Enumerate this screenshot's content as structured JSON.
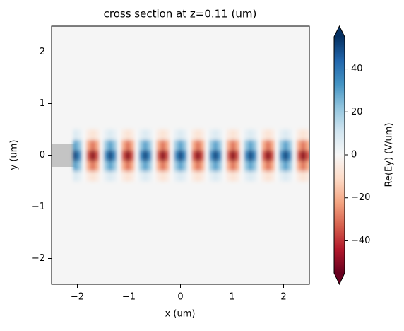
{
  "chart_data": {
    "type": "heatmap",
    "title": "cross section at z=0.11 (um)",
    "x_label": "x (um)",
    "y_label": "y (um)",
    "xlim": [
      -2.5,
      2.5
    ],
    "ylim": [
      -2.5,
      2.5
    ],
    "xticks": [
      {
        "value": -2,
        "label": "−2"
      },
      {
        "value": -1,
        "label": "−1"
      },
      0,
      1,
      2
    ],
    "yticks": [
      {
        "value": -2,
        "label": "−2"
      },
      {
        "value": -1,
        "label": "−1"
      },
      0,
      1,
      2
    ],
    "x": [
      -2.04,
      -1.955,
      -1.87,
      -1.785,
      -1.7,
      -1.615,
      -1.53,
      -1.445,
      -1.36,
      -1.275,
      -1.19,
      -1.105,
      -1.02,
      -0.935,
      -0.85,
      -0.765,
      -0.68,
      -0.595,
      -0.51,
      -0.425,
      -0.34,
      -0.255,
      -0.17,
      -0.085,
      0,
      0.085,
      0.17,
      0.255,
      0.34,
      0.425,
      0.51,
      0.595,
      0.68,
      0.765,
      0.85,
      0.935,
      1.02,
      1.105,
      1.19,
      1.275,
      1.36,
      1.445,
      1.53,
      1.615,
      1.7,
      1.785,
      1.87,
      1.955,
      2.04,
      2.125,
      2.21,
      2.295,
      2.38,
      2.465
    ],
    "y": [
      -0.4,
      -0.2,
      0,
      0.2,
      0.4
    ],
    "z": [
      [
        8,
        5,
        0,
        -5,
        -8,
        -5,
        0,
        5,
        8,
        5,
        0,
        -5,
        -8,
        -5,
        0,
        5,
        8,
        5,
        0,
        -5,
        -8,
        -5,
        0,
        5,
        8,
        5,
        0,
        -5,
        -8,
        -5,
        0,
        5,
        8,
        5,
        0,
        -5,
        -8,
        -5,
        0,
        5,
        8,
        5,
        0,
        -5,
        -8,
        -5,
        0,
        5,
        8,
        5,
        0,
        -5,
        -8,
        -5
      ],
      [
        30,
        21,
        0,
        -21,
        -30,
        -21,
        0,
        21,
        30,
        21,
        0,
        -21,
        -30,
        -21,
        0,
        21,
        30,
        21,
        0,
        -21,
        -30,
        -21,
        0,
        21,
        30,
        21,
        0,
        -21,
        -30,
        -21,
        0,
        21,
        30,
        21,
        0,
        -21,
        -30,
        -21,
        0,
        21,
        30,
        21,
        0,
        -21,
        -30,
        -21,
        0,
        21,
        30,
        21,
        0,
        -21,
        -30,
        -21
      ],
      [
        50,
        35,
        0,
        -35,
        -50,
        -35,
        0,
        35,
        50,
        35,
        0,
        -35,
        -50,
        -35,
        0,
        35,
        50,
        35,
        0,
        -35,
        -50,
        -35,
        0,
        35,
        50,
        35,
        0,
        -35,
        -50,
        -35,
        0,
        35,
        50,
        35,
        0,
        -35,
        -50,
        -35,
        0,
        35,
        50,
        35,
        0,
        -35,
        -50,
        -35,
        0,
        35,
        50,
        35,
        0,
        -35,
        -50,
        -35
      ],
      [
        30,
        21,
        0,
        -21,
        -30,
        -21,
        0,
        21,
        30,
        21,
        0,
        -21,
        -30,
        -21,
        0,
        21,
        30,
        21,
        0,
        -21,
        -30,
        -21,
        0,
        21,
        30,
        21,
        0,
        -21,
        -30,
        -21,
        0,
        21,
        30,
        21,
        0,
        -21,
        -30,
        -21,
        0,
        21,
        30,
        21,
        0,
        -21,
        -30,
        -21,
        0,
        21,
        30,
        21,
        0,
        -21,
        -30,
        -21
      ],
      [
        8,
        5,
        0,
        -5,
        -8,
        -5,
        0,
        5,
        8,
        5,
        0,
        -5,
        -8,
        -5,
        0,
        5,
        8,
        5,
        0,
        -5,
        -8,
        -5,
        0,
        5,
        8,
        5,
        0,
        -5,
        -8,
        -5,
        0,
        5,
        8,
        5,
        0,
        -5,
        -8,
        -5,
        0,
        5,
        8,
        5,
        0,
        -5,
        -8,
        -5,
        0,
        5,
        8,
        5,
        0,
        -5,
        -8,
        -5
      ]
    ],
    "colorbar": {
      "label": "Re(Ey) (V/um)",
      "clim": [
        -55,
        55
      ],
      "ticks": [
        {
          "value": -40,
          "label": "−40"
        },
        {
          "value": -20,
          "label": "−20"
        },
        0,
        20,
        40
      ],
      "colors": [
        "#67001f",
        "#b2182b",
        "#d6604d",
        "#f4a582",
        "#fddbc7",
        "#f7f7f7",
        "#d1e5f0",
        "#92c5de",
        "#4393c3",
        "#2166ac",
        "#053061"
      ],
      "extend": "both"
    }
  }
}
